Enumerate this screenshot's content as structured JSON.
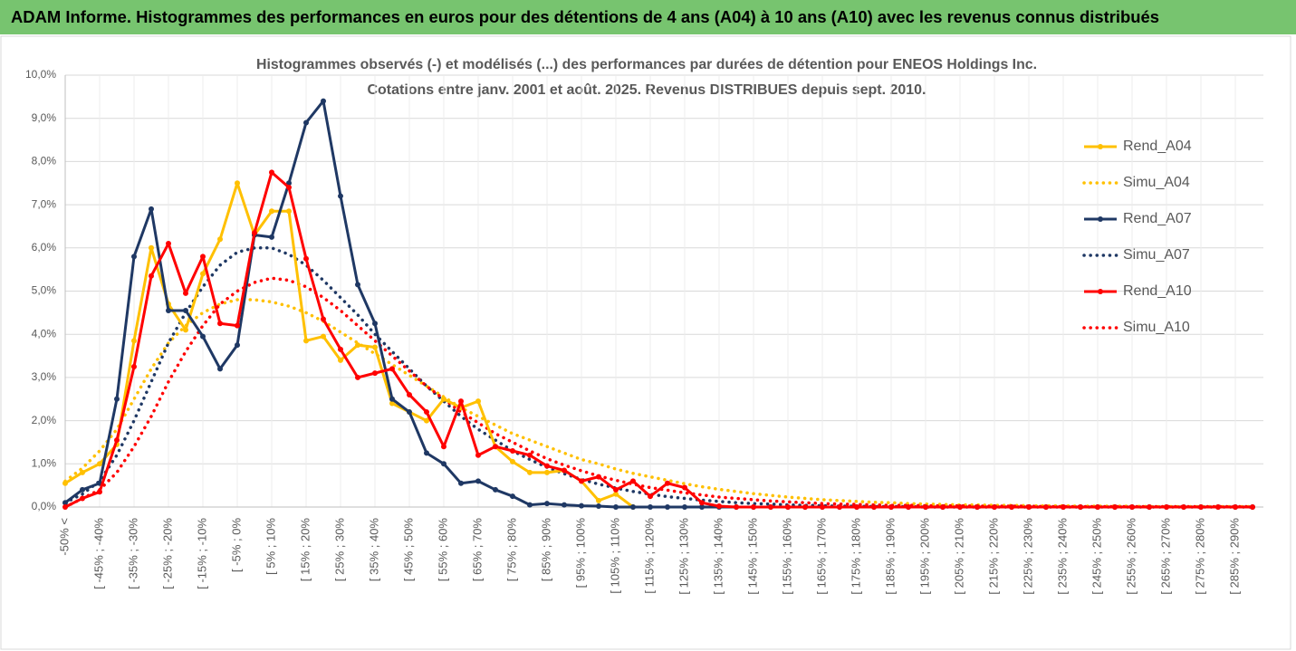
{
  "header": {
    "title": "ADAM Informe. Histogrammes des performances en euros pour des détentions de 4 ans (A04) à 10 ans (A10) avec les revenus connus distribués"
  },
  "chart_data": {
    "type": "line",
    "title": "Histogrammes observés (-) et modélisés (...) des performances par durées de détention pour ENEOS Holdings Inc.",
    "subtitle": "Cotations entre janv. 2001 et août. 2025. Revenus DISTRIBUES depuis sept. 2010.",
    "categories": [
      "-50% <",
      null,
      "[ -45% ; -40%",
      null,
      "[ -35% ; -30%",
      null,
      "[ -25% ; -20%",
      null,
      "[ -15% ; -10%",
      null,
      "[ -5% ; 0%",
      null,
      "[ 5% ; 10%",
      null,
      "[ 15% ; 20%",
      null,
      "[ 25% ; 30%",
      null,
      "[ 35% ; 40%",
      null,
      "[ 45% ; 50%",
      null,
      "[ 55% ; 60%",
      null,
      "[ 65% ; 70%",
      null,
      "[ 75% ; 80%",
      null,
      "[ 85% ; 90%",
      null,
      "[ 95% ; 100%",
      null,
      "[ 105% ; 110%",
      null,
      "[ 115% ; 120%",
      null,
      "[ 125% ; 130%",
      null,
      "[ 135% ; 140%",
      null,
      "[ 145% ; 150%",
      null,
      "[ 155% ; 160%",
      null,
      "[ 165% ; 170%",
      null,
      "[ 175% ; 180%",
      null,
      "[ 185% ; 190%",
      null,
      "[ 195% ; 200%",
      null,
      "[ 205% ; 210%",
      null,
      "[ 215% ; 220%",
      null,
      "[ 225% ; 230%",
      null,
      "[ 235% ; 240%",
      null,
      "[ 245% ; 250%",
      null,
      "[ 255% ; 260%",
      null,
      "[ 265% ; 270%",
      null,
      "[ 275% ; 280%",
      null,
      "[ 285% ; 290%",
      null
    ],
    "series": [
      {
        "name": "Rend_A04",
        "color": "#ffc000",
        "style": "solid",
        "markers": true,
        "values": [
          0.55,
          0.8,
          1.0,
          1.45,
          3.85,
          6.0,
          4.7,
          4.1,
          5.4,
          6.2,
          7.5,
          6.3,
          6.85,
          6.85,
          3.85,
          3.95,
          3.4,
          3.75,
          3.7,
          2.4,
          2.2,
          2.0,
          2.5,
          2.3,
          2.45,
          1.4,
          1.05,
          0.8,
          0.8,
          0.85,
          0.6,
          0.15,
          0.3,
          0.0,
          null,
          null,
          null,
          null,
          null,
          null,
          null,
          null,
          null,
          null,
          null,
          null,
          null,
          null,
          null,
          null,
          null,
          null,
          null,
          null,
          null,
          null,
          null,
          null,
          null,
          null,
          null,
          null,
          null,
          null,
          null,
          null,
          null,
          null,
          null,
          null
        ]
      },
      {
        "name": "Simu_A04",
        "color": "#ffc000",
        "style": "dotted",
        "markers": false,
        "values": [
          0.6,
          0.9,
          1.3,
          1.8,
          2.5,
          3.2,
          3.8,
          4.2,
          4.5,
          4.7,
          4.8,
          4.8,
          4.75,
          4.65,
          4.5,
          4.3,
          4.05,
          3.8,
          3.55,
          3.3,
          3.05,
          2.8,
          2.55,
          2.3,
          2.1,
          1.9,
          1.7,
          1.55,
          1.4,
          1.25,
          1.1,
          1.0,
          0.88,
          0.78,
          0.7,
          0.62,
          0.54,
          0.47,
          0.41,
          0.36,
          0.31,
          0.27,
          0.23,
          0.2,
          0.17,
          0.15,
          0.13,
          0.11,
          0.1,
          0.08,
          0.07,
          0.06,
          0.05,
          0.05,
          0.04,
          0.04,
          0.03,
          0.03,
          0.03,
          0.02,
          0.02,
          0.02,
          0.02,
          0.01,
          0.01,
          0.01,
          0.01,
          0.01,
          0.01,
          0.01
        ]
      },
      {
        "name": "Rend_A07",
        "color": "#1f3864",
        "style": "solid",
        "markers": true,
        "values": [
          0.1,
          0.4,
          0.55,
          2.5,
          5.8,
          6.9,
          4.55,
          4.55,
          3.95,
          3.2,
          3.75,
          6.3,
          6.25,
          7.5,
          8.9,
          9.4,
          7.2,
          5.15,
          4.25,
          2.5,
          2.2,
          1.25,
          1.0,
          0.55,
          0.6,
          0.4,
          0.25,
          0.05,
          0.08,
          0.05,
          0.03,
          0.02,
          0,
          0,
          0,
          0,
          0,
          0,
          0,
          0,
          0,
          0,
          0,
          0,
          0,
          0,
          0,
          0,
          0,
          0,
          0,
          0,
          0,
          0,
          0,
          0,
          0,
          0,
          0,
          0,
          0,
          0,
          0,
          0,
          0,
          0,
          0,
          0,
          0,
          0
        ]
      },
      {
        "name": "Simu_A07",
        "color": "#1f3864",
        "style": "dotted",
        "markers": false,
        "values": [
          0.1,
          0.3,
          0.6,
          1.2,
          2.0,
          2.9,
          3.8,
          4.5,
          5.1,
          5.6,
          5.9,
          6.0,
          6.0,
          5.85,
          5.6,
          5.25,
          4.85,
          4.45,
          4.0,
          3.6,
          3.2,
          2.8,
          2.45,
          2.1,
          1.8,
          1.55,
          1.3,
          1.1,
          0.92,
          0.77,
          0.64,
          0.53,
          0.44,
          0.36,
          0.3,
          0.24,
          0.2,
          0.16,
          0.13,
          0.1,
          0.08,
          0.07,
          0.05,
          0.04,
          0.03,
          0.02,
          0.02,
          0.01,
          0.01,
          0.01,
          0,
          0,
          0,
          0,
          0,
          0,
          0,
          0,
          0,
          0,
          0,
          0,
          0,
          0,
          0,
          0,
          0,
          0,
          0,
          0
        ]
      },
      {
        "name": "Rend_A10",
        "color": "#ff0000",
        "style": "solid",
        "markers": true,
        "values": [
          0.0,
          0.2,
          0.35,
          1.55,
          3.25,
          5.35,
          6.1,
          4.95,
          5.8,
          4.25,
          4.2,
          6.35,
          7.75,
          7.4,
          5.75,
          4.35,
          3.65,
          3.0,
          3.1,
          3.2,
          2.6,
          2.2,
          1.4,
          2.45,
          1.2,
          1.4,
          1.3,
          1.2,
          0.95,
          0.85,
          0.6,
          0.7,
          0.4,
          0.6,
          0.25,
          0.55,
          0.45,
          0.1,
          0.02,
          0,
          0,
          0,
          0,
          0,
          0,
          0,
          0,
          0,
          0,
          0,
          0,
          0,
          0,
          0,
          0,
          0,
          0,
          0,
          0,
          0,
          0,
          0,
          0,
          0,
          0,
          0,
          0,
          0,
          0,
          0
        ]
      },
      {
        "name": "Simu_A10",
        "color": "#ff0000",
        "style": "dotted",
        "markers": false,
        "values": [
          0.0,
          0.2,
          0.4,
          0.8,
          1.4,
          2.1,
          2.9,
          3.6,
          4.2,
          4.7,
          5.0,
          5.2,
          5.3,
          5.25,
          5.1,
          4.85,
          4.55,
          4.2,
          3.85,
          3.5,
          3.15,
          2.8,
          2.5,
          2.2,
          1.95,
          1.7,
          1.5,
          1.3,
          1.12,
          0.97,
          0.84,
          0.72,
          0.62,
          0.53,
          0.45,
          0.39,
          0.33,
          0.28,
          0.23,
          0.2,
          0.17,
          0.14,
          0.12,
          0.1,
          0.08,
          0.07,
          0.06,
          0.05,
          0.04,
          0.04,
          0.03,
          0.03,
          0.03,
          0.02,
          0.02,
          0.02,
          0.02,
          0.01,
          0.01,
          0.01,
          0.01,
          0.01,
          0.01,
          0.01,
          0.01,
          0.01,
          0.01,
          0.01,
          0.01,
          0.01
        ]
      }
    ],
    "ylim": [
      0,
      10
    ],
    "yticks": [
      {
        "value": 0,
        "label": "0,0%"
      },
      {
        "value": 1,
        "label": "1,0%"
      },
      {
        "value": 2,
        "label": "2,0%"
      },
      {
        "value": 3,
        "label": "3,0%"
      },
      {
        "value": 4,
        "label": "4,0%"
      },
      {
        "value": 5,
        "label": "5,0%"
      },
      {
        "value": 6,
        "label": "6,0%"
      },
      {
        "value": 7,
        "label": "7,0%"
      },
      {
        "value": 8,
        "label": "8,0%"
      },
      {
        "value": 9,
        "label": "9,0%"
      },
      {
        "value": 10,
        "label": "10,0%"
      }
    ],
    "grid": true,
    "legend": "right"
  }
}
